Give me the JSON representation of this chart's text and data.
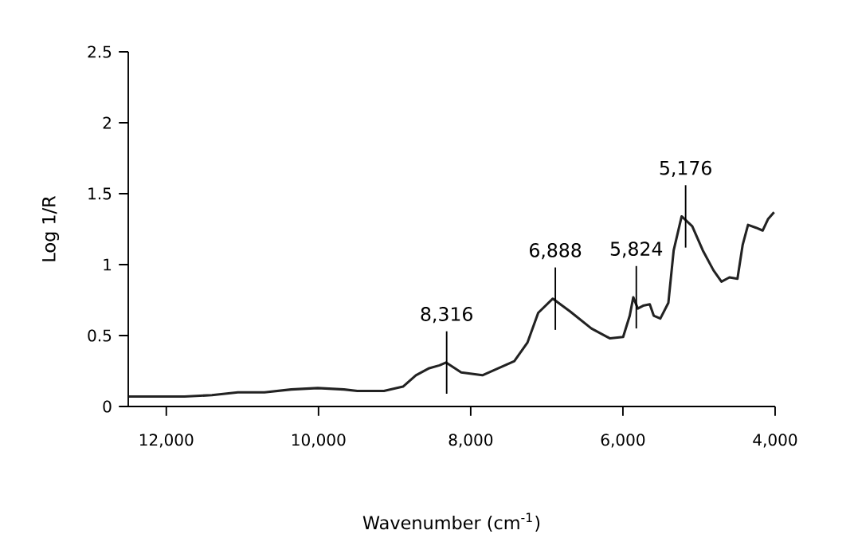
{
  "chart_data": {
    "type": "line",
    "xlabel": "Wavenumber (cm$^{-1}$)",
    "ylabel": "Log 1/R",
    "x": [
      12490,
      11760,
      11400,
      11060,
      10710,
      10360,
      10010,
      9665,
      9490,
      9140,
      8890,
      8720,
      8545,
      8410,
      8325,
      8125,
      7846,
      7427,
      7255,
      7113,
      6921,
      6694,
      6414,
      6170,
      5997,
      5910,
      5864,
      5804,
      5735,
      5647,
      5595,
      5508,
      5403,
      5333,
      5228,
      5089,
      4950,
      4810,
      4705,
      4600,
      4495,
      4426,
      4356,
      4251,
      4164,
      4094,
      4014
    ],
    "series": [
      {
        "color": "#222222",
        "values": [
          0.07,
          0.07,
          0.08,
          0.1,
          0.1,
          0.12,
          0.13,
          0.12,
          0.11,
          0.11,
          0.14,
          0.22,
          0.27,
          0.29,
          0.31,
          0.24,
          0.22,
          0.32,
          0.45,
          0.66,
          0.76,
          0.67,
          0.55,
          0.48,
          0.49,
          0.64,
          0.77,
          0.69,
          0.71,
          0.72,
          0.64,
          0.62,
          0.73,
          1.1,
          1.34,
          1.27,
          1.1,
          0.96,
          0.88,
          0.91,
          0.9,
          1.14,
          1.28,
          1.26,
          1.24,
          1.32,
          1.37
        ]
      }
    ],
    "xlim": [
      12500,
      4000
    ],
    "xticks": [
      {
        "value": 12000,
        "label": "12,000"
      },
      {
        "value": 10000,
        "label": "10,000"
      },
      {
        "value": 8000,
        "label": "8,000"
      },
      {
        "value": 6000,
        "label": "6,000"
      },
      {
        "value": 4000,
        "label": "4,000"
      }
    ],
    "ylim": [
      0,
      2.5
    ],
    "yticks": [
      0,
      0.5,
      1,
      1.5,
      2,
      2.5
    ],
    "grid": false,
    "annotations": [
      {
        "text": "8,316",
        "x": 8316,
        "y": 0.31
      },
      {
        "text": "6,888",
        "x": 6888,
        "y": 0.76
      },
      {
        "text": "5,824",
        "x": 5824,
        "y": 0.77
      },
      {
        "text": "5,176",
        "x": 5176,
        "y": 1.34
      }
    ]
  }
}
